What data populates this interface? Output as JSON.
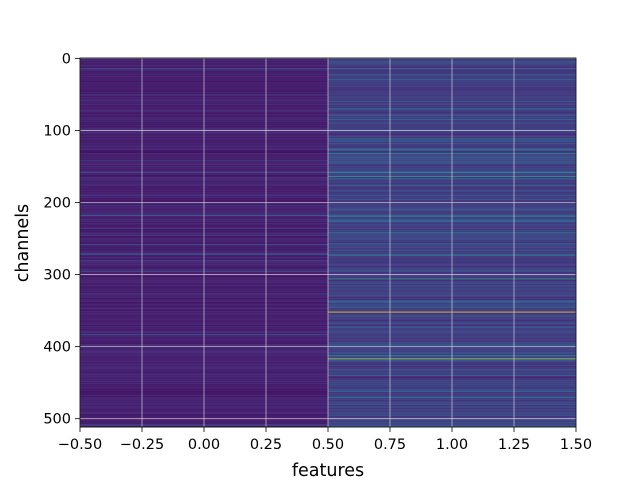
{
  "chart_data": {
    "type": "heatmap",
    "title": "",
    "xlabel": "features",
    "ylabel": "channels",
    "colormap": "viridis",
    "grid": true,
    "xlim": [
      -0.5,
      1.5
    ],
    "ylim": [
      511.5,
      -0.5
    ],
    "x_ticks": [
      -0.5,
      -0.25,
      0.0,
      0.25,
      0.5,
      0.75,
      1.0,
      1.25,
      1.5
    ],
    "x_tick_labels": [
      "−0.50",
      "−0.25",
      "0.00",
      "0.25",
      "0.50",
      "0.75",
      "1.00",
      "1.25",
      "1.50"
    ],
    "y_ticks": [
      0,
      100,
      200,
      300,
      400,
      500
    ],
    "y_tick_labels": [
      "0",
      "100",
      "200",
      "300",
      "400",
      "500"
    ],
    "n_channels": 512,
    "columns": [
      0,
      1
    ],
    "value_range": [
      0,
      1
    ],
    "base_level": [
      0.05,
      0.12
    ],
    "highlights": [
      {
        "channel": 5,
        "column": 1,
        "value": 0.35
      },
      {
        "channel": 22,
        "column": 1,
        "value": 0.3
      },
      {
        "channel": 30,
        "column": 1,
        "value": 0.38
      },
      {
        "channel": 60,
        "column": 1,
        "value": 0.28
      },
      {
        "channel": 118,
        "column": 1,
        "value": 0.3
      },
      {
        "channel": 145,
        "column": 1,
        "value": 0.32
      },
      {
        "channel": 158,
        "column": 1,
        "value": 0.55
      },
      {
        "channel": 164,
        "column": 1,
        "value": 0.6
      },
      {
        "channel": 176,
        "column": 1,
        "value": 0.4
      },
      {
        "channel": 196,
        "column": 1,
        "value": 0.3
      },
      {
        "channel": 218,
        "column": 0,
        "value": 0.35
      },
      {
        "channel": 218,
        "column": 1,
        "value": 0.3
      },
      {
        "channel": 242,
        "column": 1,
        "value": 0.45
      },
      {
        "channel": 272,
        "column": 0,
        "value": 0.3
      },
      {
        "channel": 272,
        "column": 1,
        "value": 0.3
      },
      {
        "channel": 306,
        "column": 1,
        "value": 0.55
      },
      {
        "channel": 338,
        "column": 1,
        "value": 0.3
      },
      {
        "channel": 352,
        "column": 1,
        "value": 1.0
      },
      {
        "channel": 368,
        "column": 1,
        "value": 0.3
      },
      {
        "channel": 398,
        "column": 1,
        "value": 0.35
      },
      {
        "channel": 412,
        "column": 1,
        "value": 0.5
      },
      {
        "channel": 417,
        "column": 1,
        "value": 0.85
      },
      {
        "channel": 440,
        "column": 1,
        "value": 0.35
      },
      {
        "channel": 470,
        "column": 1,
        "value": 0.3
      },
      {
        "channel": 495,
        "column": 1,
        "value": 0.35
      }
    ]
  }
}
